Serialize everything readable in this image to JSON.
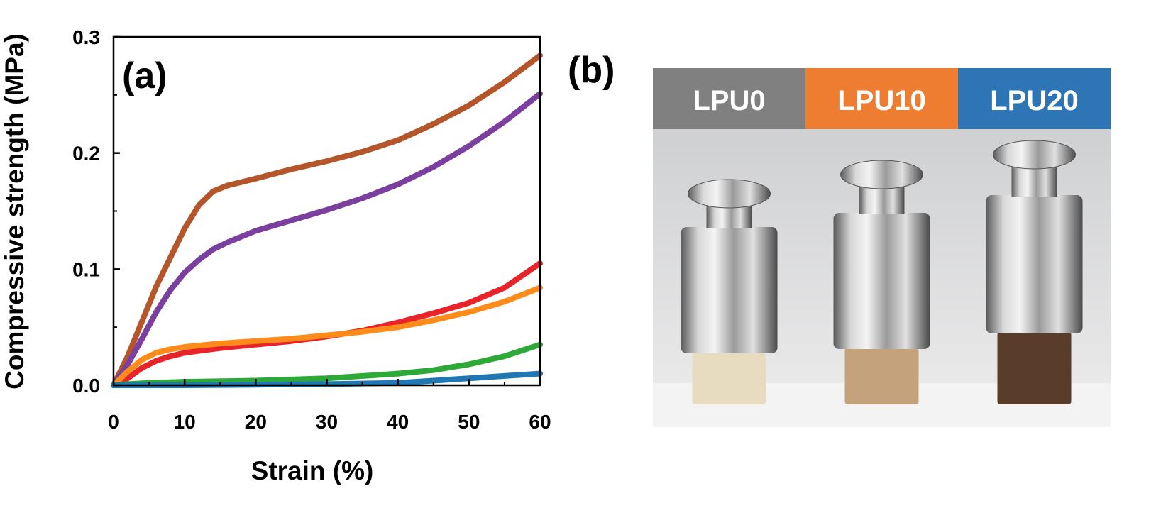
{
  "panels": {
    "a_label": "(a)",
    "b_label": "(b)"
  },
  "chart_data": {
    "type": "line",
    "title": "",
    "xlabel": "Strain (%)",
    "ylabel": "Compressive strength (MPa)",
    "xlim": [
      0,
      60
    ],
    "ylim": [
      0,
      0.3
    ],
    "xticks": [
      0,
      10,
      20,
      30,
      40,
      50,
      60
    ],
    "xtick_labels": [
      "0",
      "10",
      "20",
      "30",
      "40",
      "50",
      "60"
    ],
    "yticks": [
      0.0,
      0.1,
      0.2,
      0.3
    ],
    "ytick_labels": [
      "0.0",
      "0.1",
      "0.2",
      "0.3"
    ],
    "grid": false,
    "legend": "none",
    "series": [
      {
        "name": "brown",
        "color": "#b5562a",
        "x": [
          0,
          2,
          4,
          6,
          8,
          10,
          12,
          14,
          16,
          20,
          25,
          30,
          35,
          40,
          45,
          50,
          55,
          60
        ],
        "y": [
          0,
          0.025,
          0.055,
          0.085,
          0.11,
          0.135,
          0.155,
          0.167,
          0.172,
          0.178,
          0.186,
          0.193,
          0.201,
          0.211,
          0.225,
          0.241,
          0.261,
          0.284
        ]
      },
      {
        "name": "purple",
        "color": "#7b3fa0",
        "x": [
          0,
          2,
          4,
          6,
          8,
          10,
          12,
          14,
          16,
          20,
          25,
          30,
          35,
          40,
          45,
          50,
          55,
          60
        ],
        "y": [
          0,
          0.018,
          0.04,
          0.063,
          0.082,
          0.097,
          0.108,
          0.117,
          0.123,
          0.133,
          0.142,
          0.151,
          0.161,
          0.173,
          0.188,
          0.206,
          0.227,
          0.251
        ]
      },
      {
        "name": "red",
        "color": "#e8242a",
        "x": [
          0,
          2,
          4,
          6,
          8,
          10,
          15,
          20,
          25,
          30,
          35,
          40,
          45,
          50,
          55,
          60
        ],
        "y": [
          0,
          0.006,
          0.015,
          0.021,
          0.025,
          0.028,
          0.032,
          0.035,
          0.038,
          0.042,
          0.047,
          0.054,
          0.062,
          0.071,
          0.084,
          0.105
        ]
      },
      {
        "name": "orange",
        "color": "#ff8c1a",
        "x": [
          0,
          2,
          4,
          6,
          8,
          10,
          15,
          20,
          25,
          30,
          35,
          40,
          45,
          50,
          55,
          60
        ],
        "y": [
          0,
          0.012,
          0.022,
          0.028,
          0.031,
          0.033,
          0.036,
          0.038,
          0.04,
          0.043,
          0.046,
          0.05,
          0.056,
          0.063,
          0.072,
          0.084
        ]
      },
      {
        "name": "green",
        "color": "#2ea836",
        "x": [
          0,
          2,
          5,
          10,
          20,
          30,
          40,
          45,
          50,
          55,
          60
        ],
        "y": [
          0,
          0.001,
          0.002,
          0.003,
          0.004,
          0.006,
          0.01,
          0.013,
          0.018,
          0.025,
          0.035
        ]
      },
      {
        "name": "blue",
        "color": "#1f77b4",
        "x": [
          0,
          10,
          20,
          30,
          40,
          45,
          50,
          55,
          60
        ],
        "y": [
          0,
          0.0,
          0.0005,
          0.001,
          0.002,
          0.004,
          0.006,
          0.008,
          0.01
        ]
      }
    ]
  },
  "photo_panel": {
    "samples": [
      {
        "label": "LPU0",
        "color": "#808080",
        "foam_color": "#e8dcc0"
      },
      {
        "label": "LPU10",
        "color": "#ee7d31",
        "foam_color": "#c4a27c"
      },
      {
        "label": "LPU20",
        "color": "#2e75b6",
        "foam_color": "#5a3c2a"
      }
    ]
  }
}
